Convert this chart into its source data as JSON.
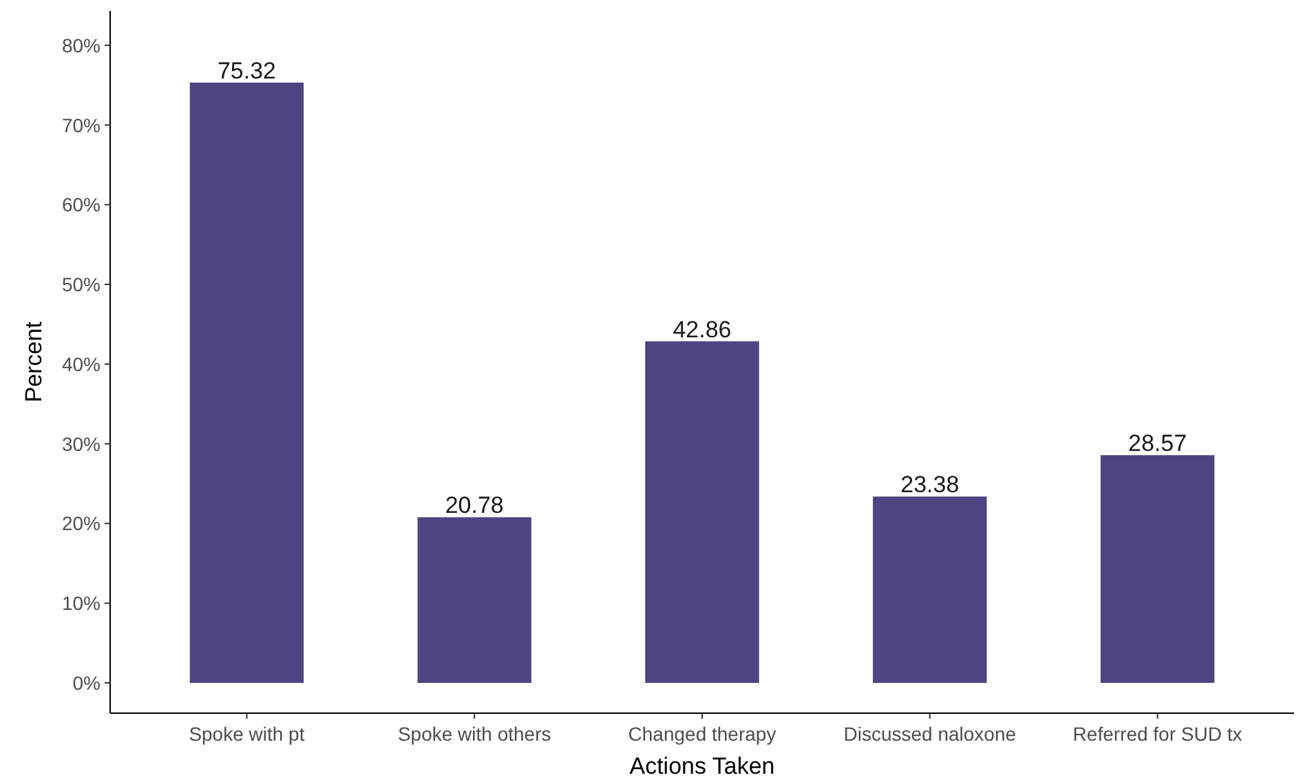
{
  "chart_data": {
    "type": "bar",
    "xlabel": "Actions Taken",
    "ylabel": "Percent",
    "categories": [
      "Spoke with pt",
      "Spoke with others",
      "Changed therapy",
      "Discussed naloxone",
      "Referred for SUD tx"
    ],
    "values": [
      75.32,
      20.78,
      42.86,
      23.38,
      28.57
    ],
    "color": "#4e4481",
    "ylim": [
      -3.8,
      84.3
    ],
    "yticks": [
      {
        "value": 0,
        "label": "0%"
      },
      {
        "value": 10,
        "label": "10%"
      },
      {
        "value": 20,
        "label": "20%"
      },
      {
        "value": 30,
        "label": "30%"
      },
      {
        "value": 40,
        "label": "40%"
      },
      {
        "value": 50,
        "label": "50%"
      },
      {
        "value": 60,
        "label": "60%"
      },
      {
        "value": 70,
        "label": "70%"
      },
      {
        "value": 80,
        "label": "80%"
      }
    ],
    "data_labels": true,
    "grid": false
  }
}
